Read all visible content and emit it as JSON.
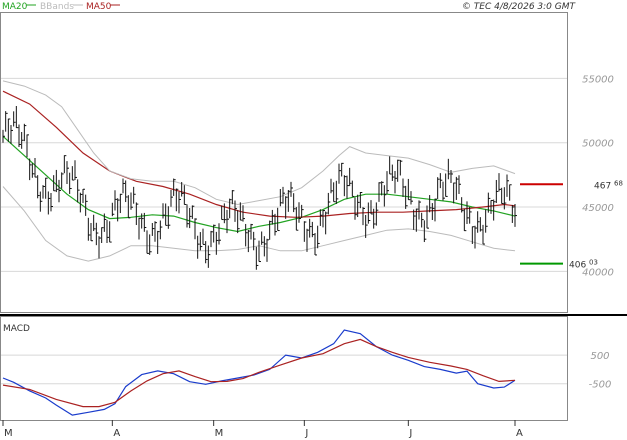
{
  "header": {
    "copyright": "© TEC 4/8/2026 3:0 GMT",
    "legend": [
      {
        "label": "MA20",
        "color": "#22a322"
      },
      {
        "label": "BBands",
        "color": "#bbbbbb"
      },
      {
        "label": "MA50",
        "color": "#aa2222"
      }
    ]
  },
  "macd_label": "MACD",
  "markers": {
    "upper": {
      "value": "467",
      "decimal": "68",
      "color": "#cc0000"
    },
    "lower": {
      "value": "406",
      "decimal": "03",
      "color": "#009900"
    }
  },
  "colors": {
    "price": "#111111",
    "ma20": "#22a322",
    "ma50": "#aa2222",
    "bbands": "#bbbbbb",
    "macd_line": "#1a3ccc",
    "signal_line": "#aa2222",
    "grid": "#d8d8d8"
  },
  "chart_data": [
    {
      "type": "line",
      "panel": "price",
      "ylim": [
        370,
        600
      ],
      "y_ticks": [
        {
          "value": 550,
          "label": "55000"
        },
        {
          "value": 500,
          "label": "50000"
        },
        {
          "value": 450,
          "label": "45000"
        },
        {
          "value": 400,
          "label": "40000"
        }
      ],
      "x_ticks": [
        "M",
        "A",
        "M",
        "J",
        "J",
        "A"
      ],
      "x_tick_positions": [
        0,
        41,
        79,
        113,
        152,
        192
      ],
      "n_bars": 193,
      "levels": [
        {
          "name": "upper",
          "value": 467.68
        },
        {
          "name": "lower",
          "value": 406.03
        }
      ],
      "series": [
        {
          "name": "MA20",
          "key": "ma20",
          "points": [
            [
              0,
              505
            ],
            [
              8,
              490
            ],
            [
              16,
              475
            ],
            [
              24,
              460
            ],
            [
              32,
              448
            ],
            [
              40,
              441
            ],
            [
              48,
              442
            ],
            [
              56,
              444
            ],
            [
              64,
              443
            ],
            [
              72,
              438
            ],
            [
              80,
              434
            ],
            [
              88,
              431
            ],
            [
              96,
              435
            ],
            [
              104,
              438
            ],
            [
              112,
              442
            ],
            [
              120,
              448
            ],
            [
              128,
              456
            ],
            [
              136,
              460
            ],
            [
              144,
              460
            ],
            [
              152,
              458
            ],
            [
              160,
              456
            ],
            [
              168,
              454
            ],
            [
              176,
              450
            ],
            [
              184,
              447
            ],
            [
              192,
              443
            ]
          ]
        },
        {
          "name": "MA50",
          "key": "ma50",
          "points": [
            [
              0,
              540
            ],
            [
              10,
              530
            ],
            [
              20,
              512
            ],
            [
              30,
              492
            ],
            [
              40,
              478
            ],
            [
              50,
              470
            ],
            [
              60,
              466
            ],
            [
              70,
              460
            ],
            [
              80,
              452
            ],
            [
              90,
              446
            ],
            [
              100,
              443
            ],
            [
              110,
              442
            ],
            [
              120,
              443
            ],
            [
              130,
              445
            ],
            [
              140,
              446
            ],
            [
              150,
              446
            ],
            [
              160,
              447
            ],
            [
              170,
              448
            ],
            [
              180,
              450
            ],
            [
              188,
              452
            ],
            [
              192,
              451
            ]
          ]
        },
        {
          "name": "BBands upper",
          "key": "bbands",
          "points": [
            [
              0,
              548
            ],
            [
              8,
              544
            ],
            [
              16,
              537
            ],
            [
              22,
              528
            ],
            [
              28,
              510
            ],
            [
              34,
              492
            ],
            [
              40,
              478
            ],
            [
              48,
              472
            ],
            [
              56,
              470
            ],
            [
              64,
              470
            ],
            [
              72,
              465
            ],
            [
              80,
              456
            ],
            [
              88,
              452
            ],
            [
              96,
              455
            ],
            [
              104,
              458
            ],
            [
              112,
              465
            ],
            [
              120,
              478
            ],
            [
              126,
              490
            ],
            [
              130,
              497
            ],
            [
              136,
              492
            ],
            [
              144,
              490
            ],
            [
              152,
              488
            ],
            [
              160,
              483
            ],
            [
              168,
              477
            ],
            [
              176,
              480
            ],
            [
              184,
              482
            ],
            [
              192,
              476
            ]
          ]
        },
        {
          "name": "BBands lower",
          "key": "bbands",
          "points": [
            [
              0,
              466
            ],
            [
              8,
              447
            ],
            [
              16,
              424
            ],
            [
              24,
              412
            ],
            [
              32,
              408
            ],
            [
              40,
              412
            ],
            [
              48,
              420
            ],
            [
              56,
              420
            ],
            [
              64,
              418
            ],
            [
              72,
              416
            ],
            [
              80,
              416
            ],
            [
              88,
              417
            ],
            [
              96,
              420
            ],
            [
              104,
              416
            ],
            [
              112,
              416
            ],
            [
              120,
              420
            ],
            [
              128,
              424
            ],
            [
              136,
              428
            ],
            [
              144,
              432
            ],
            [
              152,
              433
            ],
            [
              160,
              431
            ],
            [
              168,
              428
            ],
            [
              176,
              423
            ],
            [
              184,
              418
            ],
            [
              192,
              416
            ]
          ]
        }
      ]
    },
    {
      "type": "line",
      "panel": "macd",
      "ylim": [
        -1700,
        1800
      ],
      "y_ticks": [
        {
          "value": 500,
          "label": "500"
        },
        {
          "value": -500,
          "label": "-500"
        }
      ],
      "series": [
        {
          "name": "MACD",
          "key": "macd_line",
          "points": [
            [
              0,
              -300
            ],
            [
              4,
              -450
            ],
            [
              10,
              -750
            ],
            [
              16,
              -1000
            ],
            [
              20,
              -1250
            ],
            [
              26,
              -1600
            ],
            [
              32,
              -1500
            ],
            [
              38,
              -1400
            ],
            [
              42,
              -1200
            ],
            [
              46,
              -600
            ],
            [
              52,
              -180
            ],
            [
              58,
              -50
            ],
            [
              64,
              -150
            ],
            [
              70,
              -430
            ],
            [
              76,
              -520
            ],
            [
              82,
              -400
            ],
            [
              88,
              -300
            ],
            [
              94,
              -200
            ],
            [
              100,
              0
            ],
            [
              106,
              500
            ],
            [
              112,
              400
            ],
            [
              118,
              600
            ],
            [
              124,
              900
            ],
            [
              128,
              1380
            ],
            [
              134,
              1250
            ],
            [
              140,
              800
            ],
            [
              146,
              500
            ],
            [
              152,
              320
            ],
            [
              158,
              100
            ],
            [
              164,
              0
            ],
            [
              170,
              -130
            ],
            [
              174,
              -60
            ],
            [
              178,
              -500
            ],
            [
              184,
              -650
            ],
            [
              188,
              -620
            ],
            [
              192,
              -380
            ]
          ]
        },
        {
          "name": "Signal",
          "key": "signal_line",
          "points": [
            [
              0,
              -550
            ],
            [
              10,
              -700
            ],
            [
              20,
              -1050
            ],
            [
              30,
              -1300
            ],
            [
              36,
              -1300
            ],
            [
              42,
              -1150
            ],
            [
              48,
              -750
            ],
            [
              54,
              -400
            ],
            [
              60,
              -150
            ],
            [
              66,
              -50
            ],
            [
              72,
              -250
            ],
            [
              78,
              -430
            ],
            [
              84,
              -420
            ],
            [
              90,
              -320
            ],
            [
              96,
              -100
            ],
            [
              104,
              150
            ],
            [
              112,
              400
            ],
            [
              120,
              550
            ],
            [
              128,
              900
            ],
            [
              134,
              1050
            ],
            [
              140,
              800
            ],
            [
              146,
              600
            ],
            [
              152,
              420
            ],
            [
              160,
              250
            ],
            [
              168,
              120
            ],
            [
              174,
              0
            ],
            [
              180,
              -220
            ],
            [
              186,
              -420
            ],
            [
              192,
              -380
            ]
          ]
        }
      ]
    }
  ]
}
